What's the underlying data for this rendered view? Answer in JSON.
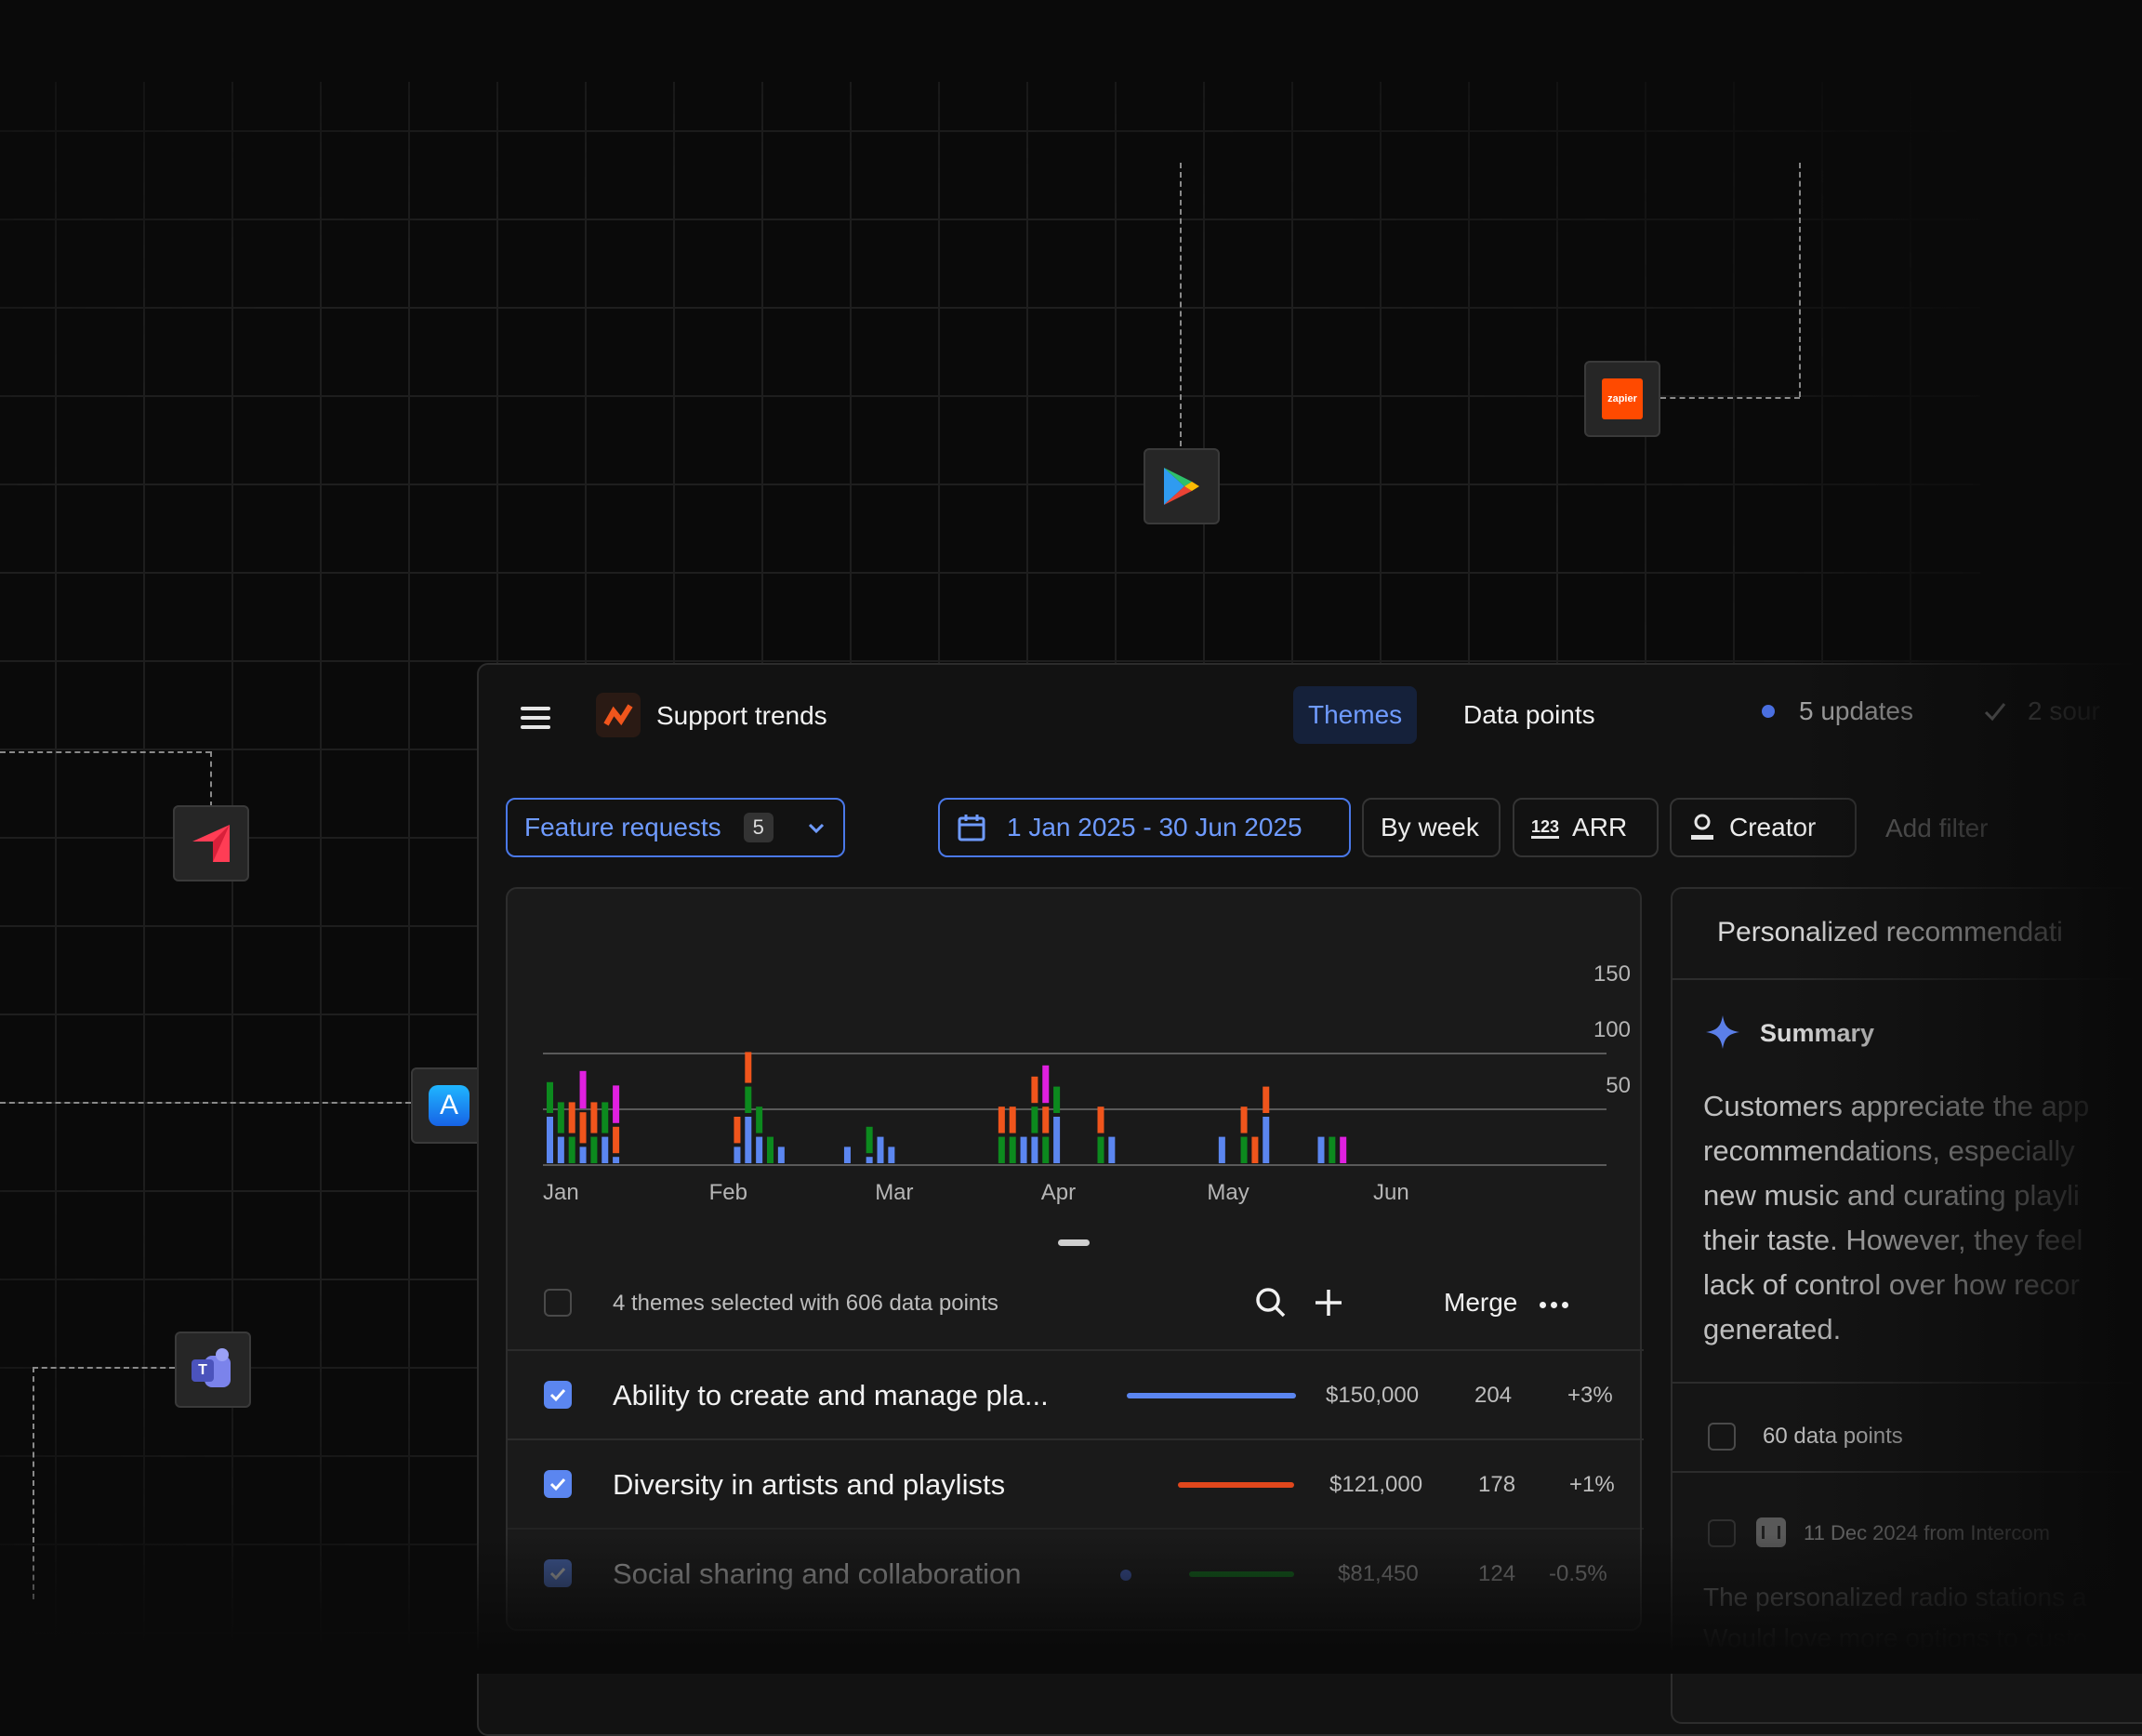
{
  "app": {
    "title": "Support trends",
    "tabs": [
      {
        "label": "Themes",
        "active": true
      },
      {
        "label": "Data points",
        "active": false
      }
    ],
    "updates_label": "5 updates",
    "sources_label": "2 sour"
  },
  "filters": {
    "theme_label": "Feature requests",
    "theme_count": "5",
    "date_range": "1 Jan 2025 - 30 Jun 2025",
    "grouping": "By week",
    "metric_icon_text": "123",
    "metric": "ARR",
    "creator": "Creator",
    "add_filter": "Add filter"
  },
  "chart_data": {
    "type": "bar",
    "stacked": true,
    "x_tick_labels": [
      "Jan",
      "Feb",
      "Mar",
      "Apr",
      "May",
      "Jun"
    ],
    "y_tick_labels": [
      "150",
      "100",
      "50"
    ],
    "ylim": [
      0,
      150
    ],
    "colors": {
      "blue": "#5b86f0",
      "green": "#0c8a1e",
      "orange": "#f0551c",
      "magenta": "#e020e0"
    },
    "bars": [
      {
        "x": 0.0,
        "values": {
          "blue": 45,
          "green": 31
        }
      },
      {
        "x": 0.5,
        "values": {
          "blue": 27,
          "green": 31
        }
      },
      {
        "x": 1.0,
        "values": {
          "green": 27,
          "orange": 31
        }
      },
      {
        "x": 1.5,
        "values": {
          "blue": 18,
          "orange": 31,
          "magenta": 37
        }
      },
      {
        "x": 2.0,
        "values": {
          "green": 27,
          "orange": 31
        }
      },
      {
        "x": 2.5,
        "values": {
          "blue": 27,
          "green": 31
        }
      },
      {
        "x": 3.0,
        "values": {
          "blue": 9,
          "orange": 27,
          "magenta": 37
        }
      },
      {
        "x": 8.5,
        "values": {
          "blue": 18,
          "orange": 27
        }
      },
      {
        "x": 9.0,
        "values": {
          "blue": 45,
          "green": 27,
          "orange": 31
        }
      },
      {
        "x": 9.5,
        "values": {
          "blue": 27,
          "green": 27
        }
      },
      {
        "x": 10.0,
        "values": {
          "green": 27
        }
      },
      {
        "x": 10.5,
        "values": {
          "blue": 18
        }
      },
      {
        "x": 13.5,
        "values": {
          "blue": 18
        }
      },
      {
        "x": 14.5,
        "values": {
          "blue": 9,
          "green": 27
        }
      },
      {
        "x": 15.0,
        "values": {
          "blue": 27
        }
      },
      {
        "x": 15.5,
        "values": {
          "blue": 18
        }
      },
      {
        "x": 20.5,
        "values": {
          "green": 27,
          "orange": 27
        }
      },
      {
        "x": 21.0,
        "values": {
          "green": 27,
          "orange": 27
        }
      },
      {
        "x": 21.5,
        "values": {
          "blue": 27
        }
      },
      {
        "x": 22.0,
        "values": {
          "blue": 27,
          "green": 27,
          "orange": 27
        }
      },
      {
        "x": 22.5,
        "values": {
          "green": 27,
          "orange": 27,
          "magenta": 37
        }
      },
      {
        "x": 23.0,
        "values": {
          "blue": 45,
          "green": 27
        }
      },
      {
        "x": 25.0,
        "values": {
          "green": 27,
          "orange": 27
        }
      },
      {
        "x": 25.5,
        "values": {
          "blue": 27
        }
      },
      {
        "x": 30.5,
        "values": {
          "blue": 27
        }
      },
      {
        "x": 31.5,
        "values": {
          "green": 27,
          "orange": 27
        }
      },
      {
        "x": 32.0,
        "values": {
          "orange": 27
        }
      },
      {
        "x": 32.5,
        "values": {
          "blue": 45,
          "orange": 27
        }
      },
      {
        "x": 35.0,
        "values": {
          "blue": 27
        }
      },
      {
        "x": 35.5,
        "values": {
          "green": 27
        }
      },
      {
        "x": 36.0,
        "values": {
          "magenta": 27
        }
      }
    ]
  },
  "table": {
    "selection_summary": "4 themes selected with 606 data points",
    "merge_label": "Merge",
    "rows": [
      {
        "name": "Ability to create and manage pla...",
        "arr": "$150,000",
        "count": "204",
        "change": "+3%",
        "color": "#5b86f0",
        "trend": 1.0
      },
      {
        "name": "Diversity in artists and playlists",
        "arr": "$121,000",
        "count": "178",
        "change": "+1%",
        "color": "#e0471c",
        "trend": 0.8
      },
      {
        "name": "Social sharing and collaboration",
        "arr": "$81,450",
        "count": "124",
        "change": "-0.5%",
        "color": "#0c8a1e",
        "trend": 0.73
      }
    ]
  },
  "side": {
    "title": "Personalized recommendati",
    "summary_label": "Summary",
    "summary_lines": [
      "Customers appreciate the app",
      "recommendations, especially",
      "new music and curating playli",
      "their taste. However, they feel",
      "lack of control over how recor",
      "generated."
    ],
    "data_points": "60 data points",
    "source_date": "11 Dec 2024 from Intercom",
    "quote_line": "The personalized radio stations a",
    "quote_line2": "Would love more options to custo"
  }
}
